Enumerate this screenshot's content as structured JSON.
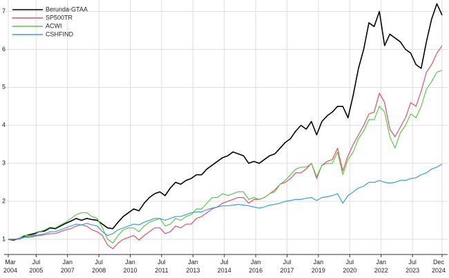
{
  "chart_data": {
    "type": "line",
    "x": [
      "2004-03",
      "2004-06",
      "2004-09",
      "2004-12",
      "2005-03",
      "2005-06",
      "2005-09",
      "2005-12",
      "2006-03",
      "2006-06",
      "2006-09",
      "2006-12",
      "2007-03",
      "2007-06",
      "2007-09",
      "2007-12",
      "2008-03",
      "2008-06",
      "2008-09",
      "2008-12",
      "2009-03",
      "2009-06",
      "2009-09",
      "2009-12",
      "2010-03",
      "2010-06",
      "2010-09",
      "2010-12",
      "2011-03",
      "2011-06",
      "2011-09",
      "2011-12",
      "2012-03",
      "2012-06",
      "2012-09",
      "2012-12",
      "2013-03",
      "2013-06",
      "2013-09",
      "2013-12",
      "2014-03",
      "2014-06",
      "2014-09",
      "2014-12",
      "2015-03",
      "2015-06",
      "2015-09",
      "2015-12",
      "2016-03",
      "2016-06",
      "2016-09",
      "2016-12",
      "2017-03",
      "2017-06",
      "2017-09",
      "2017-12",
      "2018-03",
      "2018-06",
      "2018-09",
      "2018-12",
      "2019-03",
      "2019-06",
      "2019-09",
      "2019-12",
      "2020-03",
      "2020-06",
      "2020-09",
      "2020-12",
      "2021-03",
      "2021-06",
      "2021-09",
      "2021-12",
      "2022-03",
      "2022-06",
      "2022-09",
      "2022-12",
      "2023-03",
      "2023-06",
      "2023-09",
      "2023-12",
      "2024-03",
      "2024-06",
      "2024-09",
      "2024-12"
    ],
    "series": [
      {
        "name": "Berunda-GTAA",
        "color": "#000000",
        "values": [
          1.0,
          0.98,
          1.02,
          1.08,
          1.12,
          1.15,
          1.2,
          1.22,
          1.3,
          1.28,
          1.35,
          1.42,
          1.48,
          1.55,
          1.5,
          1.55,
          1.52,
          1.5,
          1.4,
          1.3,
          1.28,
          1.45,
          1.6,
          1.7,
          1.8,
          1.75,
          1.95,
          2.1,
          2.2,
          2.25,
          2.15,
          2.35,
          2.5,
          2.45,
          2.55,
          2.6,
          2.7,
          2.7,
          2.85,
          2.95,
          3.05,
          3.15,
          3.2,
          3.3,
          3.25,
          3.2,
          3.0,
          3.05,
          3.0,
          3.1,
          3.2,
          3.25,
          3.4,
          3.55,
          3.65,
          3.85,
          4.0,
          3.9,
          4.1,
          3.75,
          4.1,
          4.25,
          4.35,
          4.5,
          4.5,
          4.2,
          4.8,
          5.5,
          6.0,
          6.7,
          6.6,
          7.0,
          6.1,
          6.4,
          6.3,
          6.2,
          6.0,
          5.9,
          5.6,
          5.5,
          6.2,
          6.8,
          7.2,
          6.9
        ]
      },
      {
        "name": "SP500TR",
        "color": "#e0506a",
        "values": [
          1.0,
          1.0,
          1.0,
          1.05,
          1.05,
          1.08,
          1.1,
          1.12,
          1.15,
          1.15,
          1.2,
          1.25,
          1.28,
          1.35,
          1.38,
          1.35,
          1.25,
          1.2,
          1.1,
          0.85,
          0.75,
          0.9,
          1.0,
          1.05,
          1.1,
          0.98,
          1.1,
          1.2,
          1.3,
          1.3,
          1.15,
          1.2,
          1.35,
          1.3,
          1.4,
          1.4,
          1.55,
          1.6,
          1.7,
          1.8,
          1.85,
          1.95,
          2.0,
          2.05,
          2.1,
          2.1,
          1.95,
          2.05,
          2.05,
          2.1,
          2.2,
          2.3,
          2.45,
          2.5,
          2.6,
          2.75,
          2.75,
          2.85,
          3.0,
          2.6,
          2.95,
          3.05,
          3.1,
          3.4,
          2.8,
          3.2,
          3.5,
          3.75,
          4.0,
          4.3,
          4.35,
          4.85,
          4.6,
          3.9,
          3.7,
          3.95,
          4.2,
          4.6,
          4.5,
          4.9,
          5.4,
          5.6,
          5.9,
          6.1
        ]
      },
      {
        "name": "ACWI",
        "color": "#5cc84a",
        "values": [
          1.0,
          1.0,
          1.02,
          1.1,
          1.1,
          1.12,
          1.2,
          1.25,
          1.32,
          1.3,
          1.38,
          1.45,
          1.55,
          1.65,
          1.7,
          1.7,
          1.6,
          1.55,
          1.3,
          1.0,
          0.9,
          1.1,
          1.25,
          1.3,
          1.3,
          1.2,
          1.35,
          1.45,
          1.5,
          1.55,
          1.35,
          1.4,
          1.55,
          1.5,
          1.6,
          1.65,
          1.8,
          1.8,
          1.95,
          2.1,
          2.1,
          2.2,
          2.15,
          2.2,
          2.25,
          2.25,
          2.05,
          2.1,
          2.05,
          2.1,
          2.2,
          2.25,
          2.45,
          2.55,
          2.7,
          2.85,
          2.9,
          2.9,
          3.0,
          2.65,
          2.95,
          3.0,
          3.0,
          3.3,
          2.7,
          3.1,
          3.3,
          3.65,
          3.85,
          4.15,
          4.15,
          4.5,
          4.35,
          3.7,
          3.4,
          3.8,
          4.0,
          4.3,
          4.2,
          4.5,
          4.95,
          5.15,
          5.4,
          5.45
        ]
      },
      {
        "name": "CSHFIND",
        "color": "#3a9ee0",
        "values": [
          1.0,
          1.0,
          1.02,
          1.05,
          1.08,
          1.1,
          1.12,
          1.15,
          1.2,
          1.2,
          1.25,
          1.3,
          1.35,
          1.4,
          1.38,
          1.42,
          1.38,
          1.35,
          1.2,
          1.1,
          1.15,
          1.25,
          1.3,
          1.35,
          1.4,
          1.38,
          1.45,
          1.5,
          1.55,
          1.55,
          1.5,
          1.55,
          1.6,
          1.6,
          1.65,
          1.7,
          1.72,
          1.72,
          1.78,
          1.82,
          1.85,
          1.88,
          1.88,
          1.9,
          1.92,
          1.9,
          1.88,
          1.85,
          1.82,
          1.85,
          1.9,
          1.92,
          1.95,
          2.0,
          2.02,
          2.05,
          2.05,
          2.08,
          2.1,
          2.02,
          2.1,
          2.12,
          2.15,
          2.2,
          1.95,
          2.15,
          2.25,
          2.35,
          2.4,
          2.5,
          2.5,
          2.55,
          2.5,
          2.48,
          2.5,
          2.55,
          2.55,
          2.6,
          2.62,
          2.7,
          2.75,
          2.85,
          2.9,
          2.98
        ]
      }
    ],
    "xlim": [
      "2004-03",
      "2024-12"
    ],
    "xticks": [
      {
        "value": "2004-03",
        "label": "Mar 2004"
      },
      {
        "value": "2005-07",
        "label": "Jul 2005"
      },
      {
        "value": "2007-01",
        "label": "Jan 2007"
      },
      {
        "value": "2008-07",
        "label": "Jul 2008"
      },
      {
        "value": "2010-01",
        "label": "Jan 2010"
      },
      {
        "value": "2011-07",
        "label": "Jul 2011"
      },
      {
        "value": "2013-01",
        "label": "Jan 2013"
      },
      {
        "value": "2014-07",
        "label": "Jul 2014"
      },
      {
        "value": "2016-01",
        "label": "Jan 2016"
      },
      {
        "value": "2017-07",
        "label": "Jul 2017"
      },
      {
        "value": "2019-01",
        "label": "Jan 2019"
      },
      {
        "value": "2020-07",
        "label": "Jul 2020"
      },
      {
        "value": "2022-01",
        "label": "Jan 2022"
      },
      {
        "value": "2023-07",
        "label": "Jul 2023"
      },
      {
        "value": "2024-12",
        "label": "Dec 2024"
      }
    ],
    "ylim": [
      0.6,
      7.3
    ],
    "yticks": [
      1,
      2,
      3,
      4,
      5,
      6,
      7
    ],
    "grid": true,
    "legend": "top-left"
  }
}
